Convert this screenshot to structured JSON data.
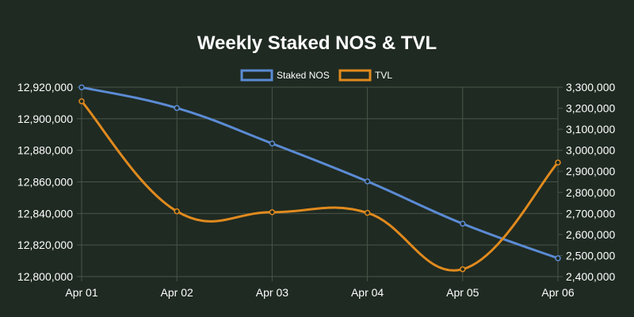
{
  "chart_data": {
    "type": "line",
    "title": "Weekly Staked NOS & TVL",
    "categories": [
      "Apr 01",
      "Apr 02",
      "Apr 03",
      "Apr 04",
      "Apr 05",
      "Apr 06"
    ],
    "series": [
      {
        "name": "Staked NOS",
        "axis": "left",
        "color": "#5b8bd4",
        "values": [
          12919900,
          12906800,
          12884300,
          12860300,
          12833500,
          12811600
        ]
      },
      {
        "name": "TVL",
        "axis": "right",
        "color": "#e08a1e",
        "values": [
          3233000,
          2710000,
          2706000,
          2703000,
          2435000,
          2942000
        ]
      }
    ],
    "y_left": {
      "min": 12800000,
      "max": 12920000,
      "ticks": [
        "12,920,000",
        "12,900,000",
        "12,880,000",
        "12,860,000",
        "12,840,000",
        "12,820,000",
        "12,800,000"
      ]
    },
    "y_right": {
      "min": 2400000,
      "max": 3300000,
      "ticks": [
        "3,300,000",
        "3,200,000",
        "3,100,000",
        "3,000,000",
        "2,900,000",
        "2,800,000",
        "2,700,000",
        "2,600,000",
        "2,500,000",
        "2,400,000"
      ]
    },
    "legend_position": "top-center",
    "grid": true
  }
}
